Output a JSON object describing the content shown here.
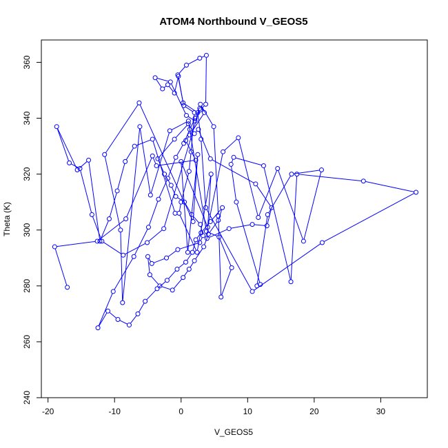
{
  "chart_data": {
    "type": "line",
    "title": "ATOM4 Northbound V_GEOS5",
    "xlabel": "V_GEOS5",
    "ylabel": "Theta (K)",
    "xlim": [
      -21,
      37
    ],
    "ylim": [
      240,
      368
    ],
    "xticks": [
      -20,
      -10,
      0,
      10,
      20,
      30
    ],
    "yticks": [
      240,
      260,
      280,
      300,
      320,
      340,
      360
    ],
    "grid": false,
    "legend": "none",
    "marker": "open-circle",
    "color": "#0000ff",
    "series": [
      {
        "x": [
          -17.1,
          -19.0,
          -12.6,
          -8.3,
          -4.3,
          -3.7,
          2.2,
          0.7,
          1.3,
          3.5,
          2.9,
          4.9,
          5.6,
          6.0,
          7.6,
          5.7,
          3.8,
          1.1,
          -1.7,
          -4.6,
          -6.2,
          -8.8,
          -9.1,
          -11.5,
          -6.3,
          1.8,
          2.5,
          1.0,
          0.0,
          4.0,
          6.3,
          8.6,
          11.6,
          14.5,
          18.4,
          21.1,
          16.6,
          13.0,
          11.4,
          11.9,
          8.3,
          7.5,
          7.9,
          12.4,
          16.5,
          17.4,
          27.4,
          35.3,
          21.2,
          10.7,
          3.7,
          3.0,
          2.5,
          0.3,
          -0.4,
          -1.0,
          -2.0,
          -2.8,
          -3.9,
          -1.6,
          0.8,
          2.1,
          2.9,
          3.7,
          3.8,
          2.8,
          0.8,
          -0.5,
          0.4,
          2.0,
          1.5,
          1.2,
          0.0,
          -0.3,
          2.4,
          4.5,
          3.9,
          7.2,
          10.7,
          12.9,
          13.6,
          11.2,
          4.4,
          2.6,
          2.0,
          1.1,
          -1.0,
          -3.5,
          -2.5,
          -1.5,
          -0.8,
          0.5,
          1.6,
          2.9,
          3.3,
          2.8,
          -0.5,
          -2.2,
          -4.4,
          -5.0,
          -4.7,
          -3.2,
          -1.3,
          0.3,
          1.2,
          2.0,
          3.4,
          4.1,
          5.6,
          6.2,
          4.4,
          3.0,
          2.2,
          1.7,
          0.7,
          -0.6,
          -2.1,
          -3.6,
          -5.4,
          -6.5,
          -7.8,
          -9.5,
          -11.0,
          -12.5,
          -10.2,
          -7.1,
          -4.9,
          -3.4,
          -2.0,
          -0.8,
          0.4,
          1.3,
          2.1,
          2.8,
          -2.6,
          -5.1,
          -8.7,
          -11.9,
          -13.4,
          -15.2,
          -16.8,
          -18.7,
          -15.6,
          -13.9,
          -12.2,
          -10.8,
          -9.6,
          -8.4,
          -7.0,
          -4.3,
          -0.9
        ],
        "y": [
          279.5,
          294.0,
          296.0,
          304.0,
          326.5,
          323.0,
          325.0,
          332.0,
          334.0,
          342.0,
          345.0,
          337.0,
          305.0,
          276.0,
          286.5,
          297.5,
          299.5,
          339.0,
          335.5,
          312.5,
          337.0,
          274.0,
          300.0,
          327.0,
          345.5,
          303.0,
          327.0,
          292.0,
          324.5,
          301.0,
          328.0,
          333.0,
          304.5,
          322.0,
          296.0,
          321.5,
          320.0,
          305.5,
          280.0,
          280.5,
          310.0,
          323.5,
          326.0,
          323.0,
          281.5,
          320.0,
          317.5,
          313.5,
          295.5,
          278.0,
          308.0,
          332.5,
          342.0,
          345.5,
          355.0,
          349.0,
          352.0,
          350.5,
          354.5,
          353.0,
          341.0,
          339.0,
          343.0,
          345.0,
          362.5,
          361.5,
          359.0,
          355.5,
          344.5,
          342.0,
          328.0,
          321.0,
          310.0,
          306.0,
          292.0,
          320.0,
          297.0,
          300.5,
          302.0,
          301.5,
          308.0,
          316.5,
          325.5,
          336.0,
          334.5,
          338.0,
          332.5,
          325.5,
          320.0,
          316.0,
          312.0,
          310.0,
          305.5,
          302.0,
          298.0,
          295.5,
          293.0,
          290.0,
          288.0,
          290.5,
          284.0,
          280.0,
          278.5,
          283.0,
          286.0,
          289.0,
          294.0,
          298.5,
          303.5,
          308.0,
          303.0,
          299.0,
          296.5,
          292.0,
          288.5,
          286.0,
          282.0,
          279.0,
          274.5,
          270.0,
          266.0,
          268.0,
          271.0,
          265.0,
          278.0,
          290.5,
          301.0,
          311.0,
          318.5,
          326.0,
          331.0,
          336.0,
          340.0,
          343.5,
          300.5,
          295.5,
          291.0,
          296.0,
          305.5,
          322.0,
          324.0,
          337.0,
          321.5,
          325.0,
          296.0,
          304.0,
          314.0,
          324.5,
          330.0,
          332.5,
          306.0
        ]
      }
    ]
  }
}
